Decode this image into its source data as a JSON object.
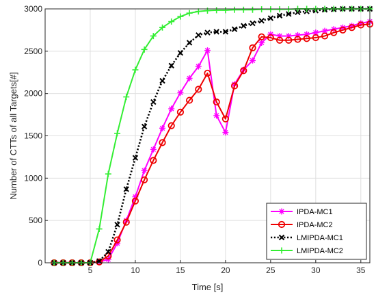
{
  "chart_data": {
    "type": "line",
    "title": "",
    "xlabel": "Time [s]",
    "ylabel": "Number of CTTs of all Targets[#]",
    "xlim": [
      0,
      36
    ],
    "ylim": [
      0,
      3000
    ],
    "xticks": [
      5,
      10,
      15,
      20,
      25,
      30,
      35
    ],
    "yticks": [
      0,
      500,
      1000,
      1500,
      2000,
      2500,
      3000
    ],
    "grid": true,
    "legend_position": "bottom-right",
    "x": [
      1,
      2,
      3,
      4,
      5,
      6,
      7,
      8,
      9,
      10,
      11,
      12,
      13,
      14,
      15,
      16,
      17,
      18,
      19,
      20,
      21,
      22,
      23,
      24,
      25,
      26,
      27,
      28,
      29,
      30,
      31,
      32,
      33,
      34,
      35,
      36
    ],
    "series": [
      {
        "name": "IPDA-MC1",
        "color": "#ff00ff",
        "marker": "asterisk",
        "line": "solid",
        "values": [
          0,
          0,
          0,
          0,
          0,
          10,
          40,
          230,
          500,
          780,
          1090,
          1340,
          1590,
          1820,
          2010,
          2180,
          2320,
          2510,
          1740,
          1540,
          2110,
          2280,
          2390,
          2600,
          2700,
          2680,
          2680,
          2690,
          2700,
          2720,
          2740,
          2760,
          2780,
          2800,
          2830,
          2850
        ]
      },
      {
        "name": "IPDA-MC2",
        "color": "#ee0000",
        "marker": "circle",
        "line": "solid",
        "values": [
          0,
          0,
          0,
          0,
          0,
          10,
          80,
          270,
          480,
          730,
          980,
          1210,
          1420,
          1620,
          1780,
          1920,
          2050,
          2240,
          1900,
          1700,
          2090,
          2270,
          2540,
          2670,
          2660,
          2630,
          2630,
          2640,
          2650,
          2660,
          2680,
          2720,
          2750,
          2780,
          2810,
          2820
        ]
      },
      {
        "name": "LMIPDA-MC1",
        "color": "#000000",
        "marker": "x",
        "line": "dotted",
        "values": [
          0,
          0,
          0,
          0,
          0,
          20,
          130,
          450,
          870,
          1240,
          1610,
          1900,
          2150,
          2330,
          2480,
          2600,
          2690,
          2720,
          2730,
          2730,
          2760,
          2800,
          2830,
          2860,
          2890,
          2920,
          2940,
          2960,
          2970,
          2980,
          2990,
          2995,
          3000,
          3000,
          3000,
          3000
        ]
      },
      {
        "name": "LMIPDA-MC2",
        "color": "#33ee33",
        "marker": "plus",
        "line": "solid",
        "values": [
          0,
          0,
          0,
          0,
          0,
          400,
          1050,
          1530,
          1960,
          2280,
          2520,
          2680,
          2780,
          2850,
          2910,
          2950,
          2970,
          2980,
          2985,
          2985,
          2990,
          2990,
          2990,
          2995,
          2995,
          2995,
          2995,
          3000,
          3000,
          3000,
          3000,
          3000,
          3000,
          3000,
          3000,
          3000
        ]
      }
    ]
  }
}
